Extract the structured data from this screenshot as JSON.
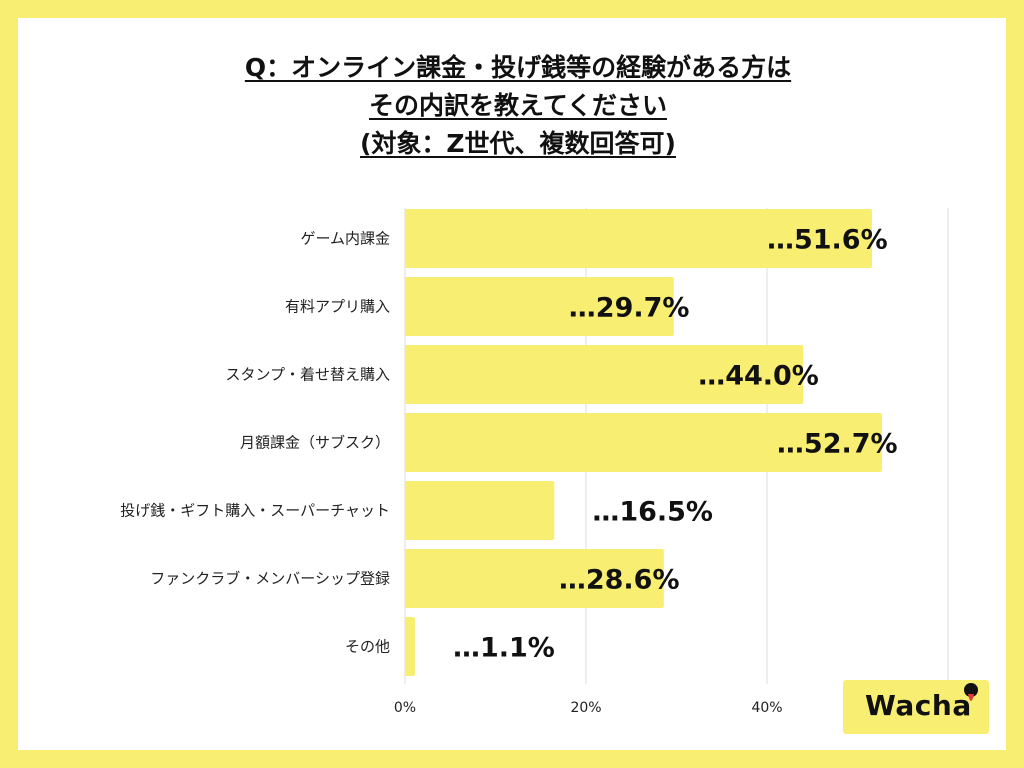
{
  "title_lines": [
    "Q：オンライン課金・投げ銭等の経験がある方は",
    "その内訳を教えてください",
    "(対象：Z世代、複数回答可)"
  ],
  "logo": {
    "text": "Wacha",
    "color": "#f8ee72"
  },
  "colors": {
    "bar": "#f8ee72",
    "background": "#f8ee72",
    "grid": "#dddddd"
  },
  "chart_data": {
    "type": "bar",
    "orientation": "horizontal",
    "title": "Q：オンライン課金・投げ銭等の経験がある方は その内訳を教えてください (対象：Z世代、複数回答可)",
    "categories": [
      "ゲーム内課金",
      "有料アプリ購入",
      "スタンプ・着せ替え購入",
      "月額課金（サブスク）",
      "投げ銭・ギフト購入・スーパーチャット",
      "ファンクラブ・メンバーシップ登録",
      "その他"
    ],
    "values": [
      51.6,
      29.7,
      44.0,
      52.7,
      16.5,
      28.6,
      1.1
    ],
    "value_labels": [
      "…51.6%",
      "…29.7%",
      "…44.0%",
      "…52.7%",
      "…16.5%",
      "…28.6%",
      "…1.1%"
    ],
    "xlim": [
      0,
      60
    ],
    "xticks": [
      0,
      20,
      40
    ],
    "xtick_labels": [
      "0%",
      "20%",
      "40%"
    ],
    "grid": true,
    "legend": "none"
  }
}
